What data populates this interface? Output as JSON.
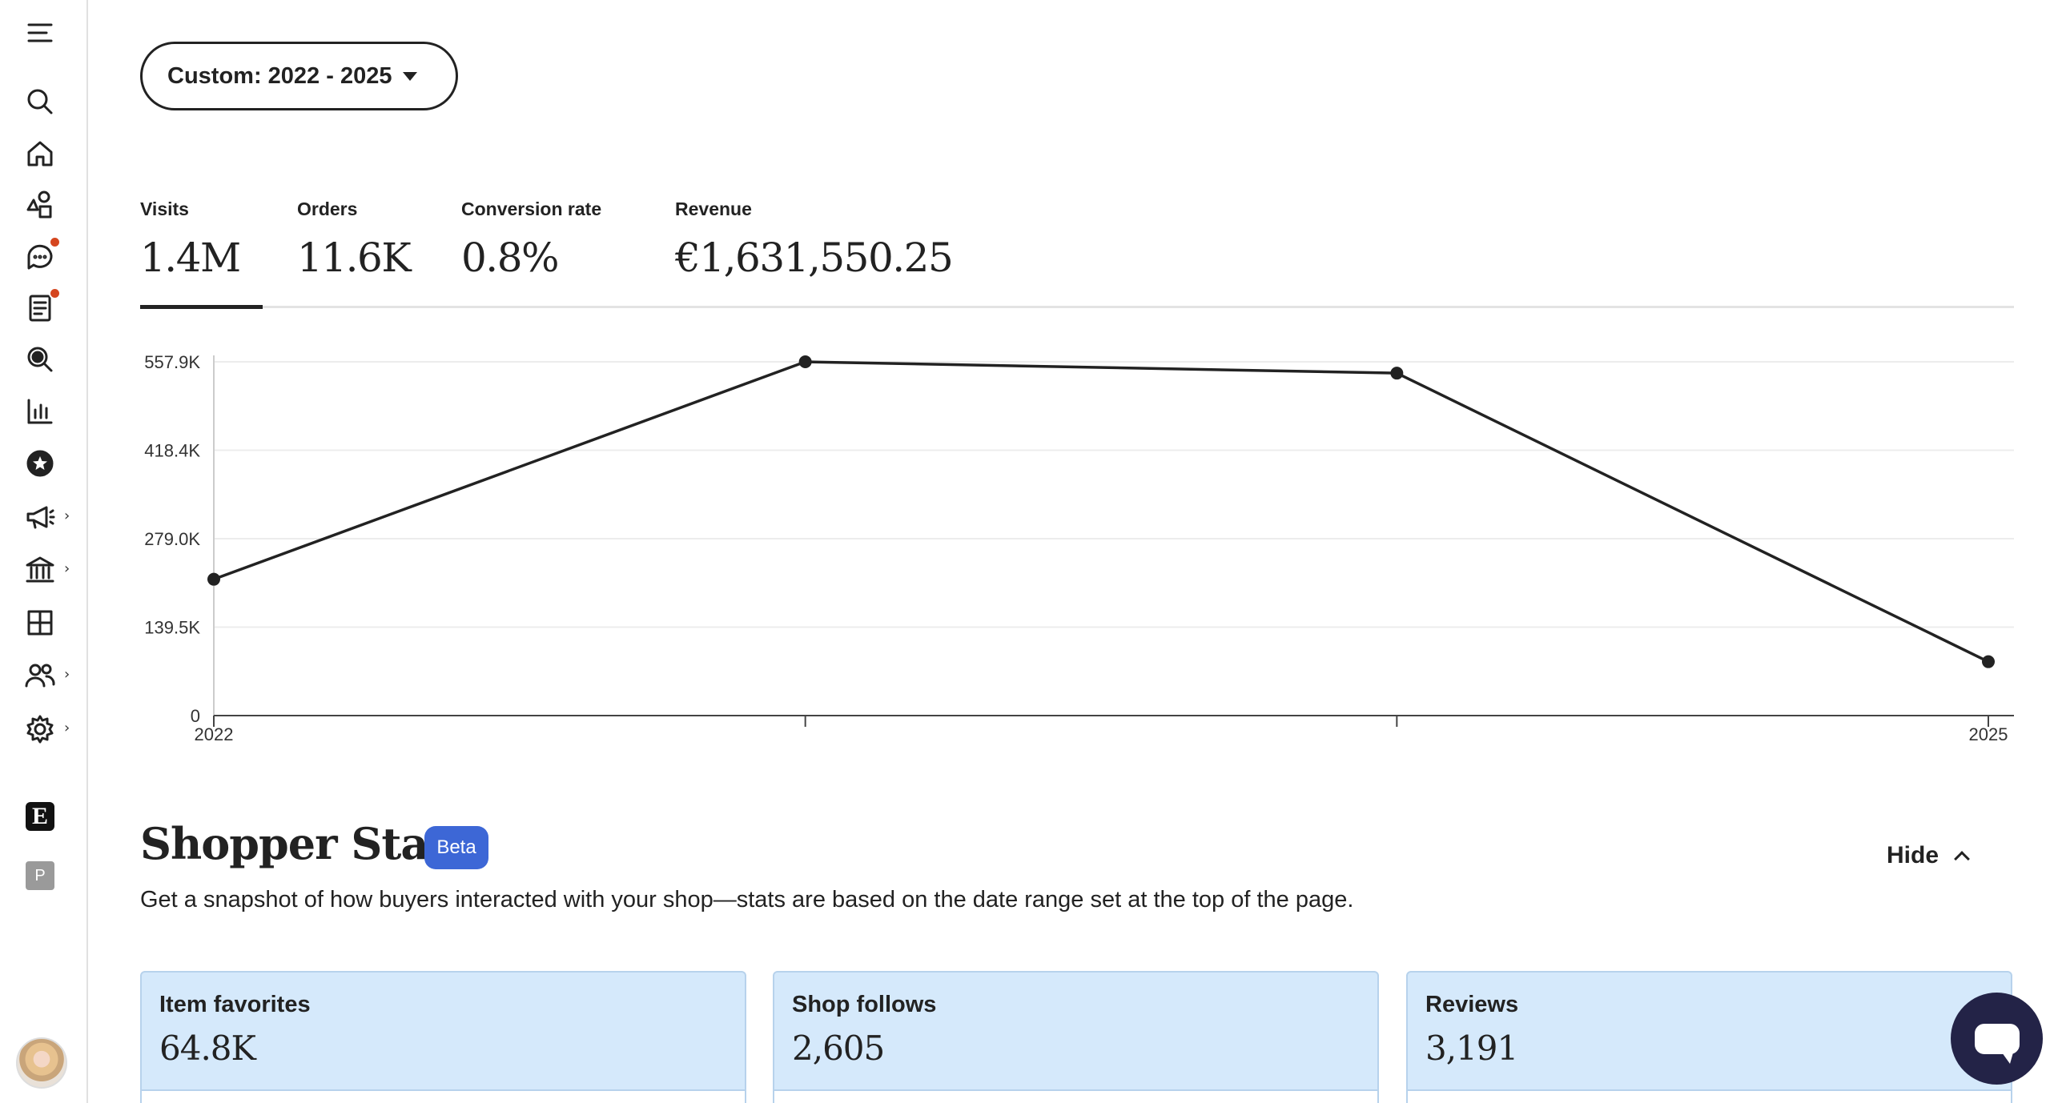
{
  "sidebar": {
    "icons": [
      "menu-icon",
      "search-icon",
      "home-icon",
      "shapes-icon",
      "messages-icon",
      "orders-icon",
      "zoom-icon",
      "stats-icon",
      "star-badge-icon",
      "megaphone-icon",
      "bank-icon",
      "grid-icon",
      "people-icon",
      "gear-icon"
    ],
    "etsy_letter": "E",
    "profile_letter": "P"
  },
  "date_selector": {
    "label": "Custom: 2022 - 2025"
  },
  "metrics": [
    {
      "label": "Visits",
      "value": "1.4M"
    },
    {
      "label": "Orders",
      "value": "11.6K"
    },
    {
      "label": "Conversion rate",
      "value": "0.8%"
    },
    {
      "label": "Revenue",
      "value": "€1,631,550.25"
    }
  ],
  "chart_data": {
    "type": "line",
    "x": [
      "2022",
      "2023",
      "2024",
      "2025"
    ],
    "x_tick_labels": [
      "2022",
      "",
      "",
      "2025"
    ],
    "series": [
      {
        "values": [
          215000,
          557900,
          540000,
          85000
        ]
      }
    ],
    "y_tick_labels": [
      "0",
      "139.5K",
      "279.0K",
      "418.4K",
      "557.9K"
    ],
    "ylim": [
      0,
      557900
    ],
    "grid": true,
    "line_color": "#222222"
  },
  "shopper_stats": {
    "title": "Shopper Stats",
    "badge": "Beta",
    "description": "Get a snapshot of how buyers interacted with your shop—stats are based on the date range set at the top of the page.",
    "hide_label": "Hide",
    "cards": [
      {
        "label": "Item favorites",
        "value": "64.8K"
      },
      {
        "label": "Shop follows",
        "value": "2,605"
      },
      {
        "label": "Reviews",
        "value": "3,191"
      }
    ],
    "card_color": "#d5e9fb",
    "badge_color": "#3d67d6"
  }
}
